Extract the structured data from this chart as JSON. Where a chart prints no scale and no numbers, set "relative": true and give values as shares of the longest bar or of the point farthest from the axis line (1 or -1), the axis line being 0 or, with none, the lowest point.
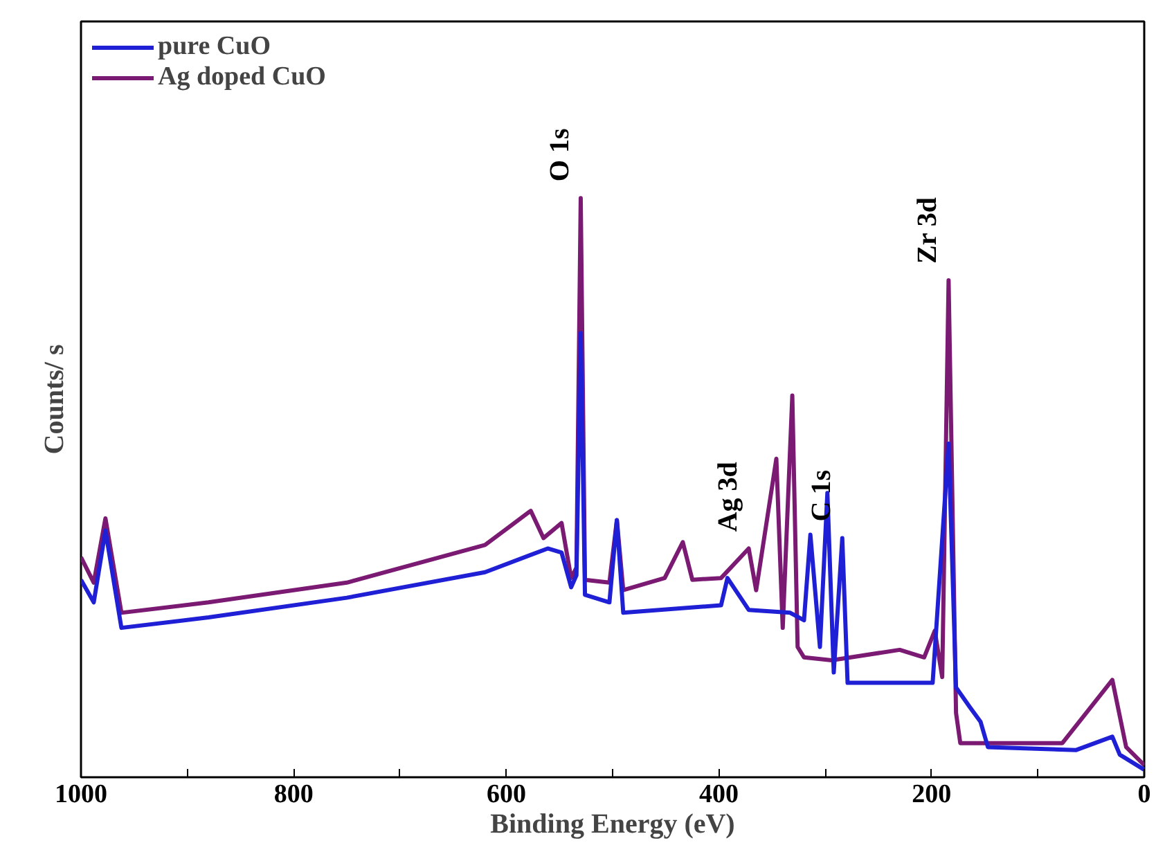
{
  "chart_data": {
    "type": "line",
    "relative": true,
    "xlabel": "Binding Energy (eV)",
    "ylabel": "Counts/ s",
    "xlim": [
      1000,
      0
    ],
    "xticks": [
      1000,
      {
        "value": 900,
        "label": null
      },
      800,
      {
        "value": 700,
        "label": null
      },
      600,
      {
        "value": 500,
        "label": null
      },
      400,
      {
        "value": 300,
        "label": null
      },
      200,
      {
        "value": 100,
        "label": null
      },
      0
    ],
    "legend": "top left",
    "grid": false,
    "annotations": [
      {
        "text": "O 1s",
        "x": 530,
        "y": 1.0
      },
      {
        "text": "Ag 3d",
        "x": 372,
        "y": 0.395
      },
      {
        "text": "C 1s",
        "x": 284,
        "y": 0.413
      },
      {
        "text": "Zr 3d",
        "x": 184,
        "y": 0.858
      }
    ],
    "series": [
      {
        "name": "pure CuO",
        "color": "#1f1fd6",
        "x": [
          1000,
          988,
          977,
          962,
          880,
          750,
          620,
          561,
          548,
          539,
          534,
          530,
          526,
          503,
          496,
          490,
          398,
          392,
          372,
          333,
          320,
          314,
          305,
          298,
          292,
          284,
          279,
          199,
          184,
          177,
          164,
          154,
          147,
          64,
          30,
          23,
          0
        ],
        "values": [
          0.341,
          0.302,
          0.426,
          0.258,
          0.276,
          0.31,
          0.354,
          0.395,
          0.388,
          0.328,
          0.349,
          0.767,
          0.315,
          0.302,
          0.444,
          0.284,
          0.297,
          0.344,
          0.289,
          0.284,
          0.271,
          0.419,
          0.225,
          0.491,
          0.181,
          0.413,
          0.163,
          0.163,
          0.576,
          0.155,
          0.121,
          0.096,
          0.052,
          0.047,
          0.07,
          0.039,
          0.013
        ]
      },
      {
        "name": "Ag doped CuO",
        "color": "#7b1a73",
        "x": [
          1000,
          988,
          977,
          962,
          880,
          750,
          620,
          577,
          565,
          548,
          539,
          534,
          530,
          526,
          503,
          496,
          490,
          451,
          434,
          425,
          398,
          372,
          365,
          346,
          340,
          331,
          326,
          320,
          294,
          230,
          207,
          197,
          190,
          184,
          177,
          173,
          77,
          30,
          17,
          0
        ],
        "values": [
          0.38,
          0.336,
          0.447,
          0.284,
          0.302,
          0.336,
          0.401,
          0.46,
          0.413,
          0.439,
          0.344,
          0.362,
          1.0,
          0.341,
          0.336,
          0.444,
          0.323,
          0.344,
          0.406,
          0.341,
          0.344,
          0.395,
          0.323,
          0.55,
          0.258,
          0.659,
          0.225,
          0.207,
          0.202,
          0.22,
          0.207,
          0.253,
          0.173,
          0.858,
          0.111,
          0.059,
          0.059,
          0.168,
          0.052,
          0.021
        ]
      }
    ]
  }
}
